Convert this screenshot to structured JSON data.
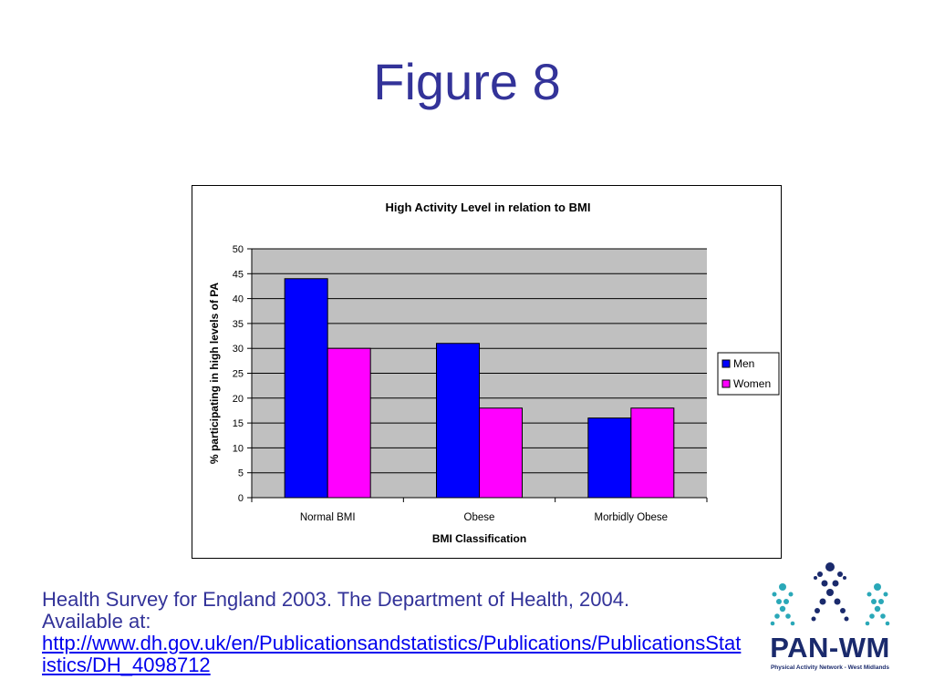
{
  "slide": {
    "title": "Figure 8"
  },
  "chart_data": {
    "type": "bar",
    "title": "High Activity Level in relation to BMI",
    "xlabel": "BMI Classification",
    "ylabel": "% participating in high levels of PA",
    "categories": [
      "Normal BMI",
      "Obese",
      "Morbidly Obese"
    ],
    "series": [
      {
        "name": "Men",
        "values": [
          44,
          31,
          16
        ],
        "color": "#0000ff"
      },
      {
        "name": "Women",
        "values": [
          30,
          18,
          18
        ],
        "color": "#ff00ff"
      }
    ],
    "ylim": [
      0,
      50
    ],
    "yticks": [
      0,
      5,
      10,
      15,
      20,
      25,
      30,
      35,
      40,
      45,
      50
    ],
    "grid": true,
    "plot_background": "#c0c0c0",
    "legend_position": "right"
  },
  "citation": {
    "line1": "Health Survey for England 2003. The Department of Health, 2004.",
    "line2": "Available at:",
    "link": "http://www.dh.gov.uk/en/Publicationsandstatistics/Publications/PublicationsStatistics/DH_4098712"
  },
  "logo": {
    "name": "PAN-WM",
    "tagline": "Physical Activity Network - West Midlands"
  }
}
